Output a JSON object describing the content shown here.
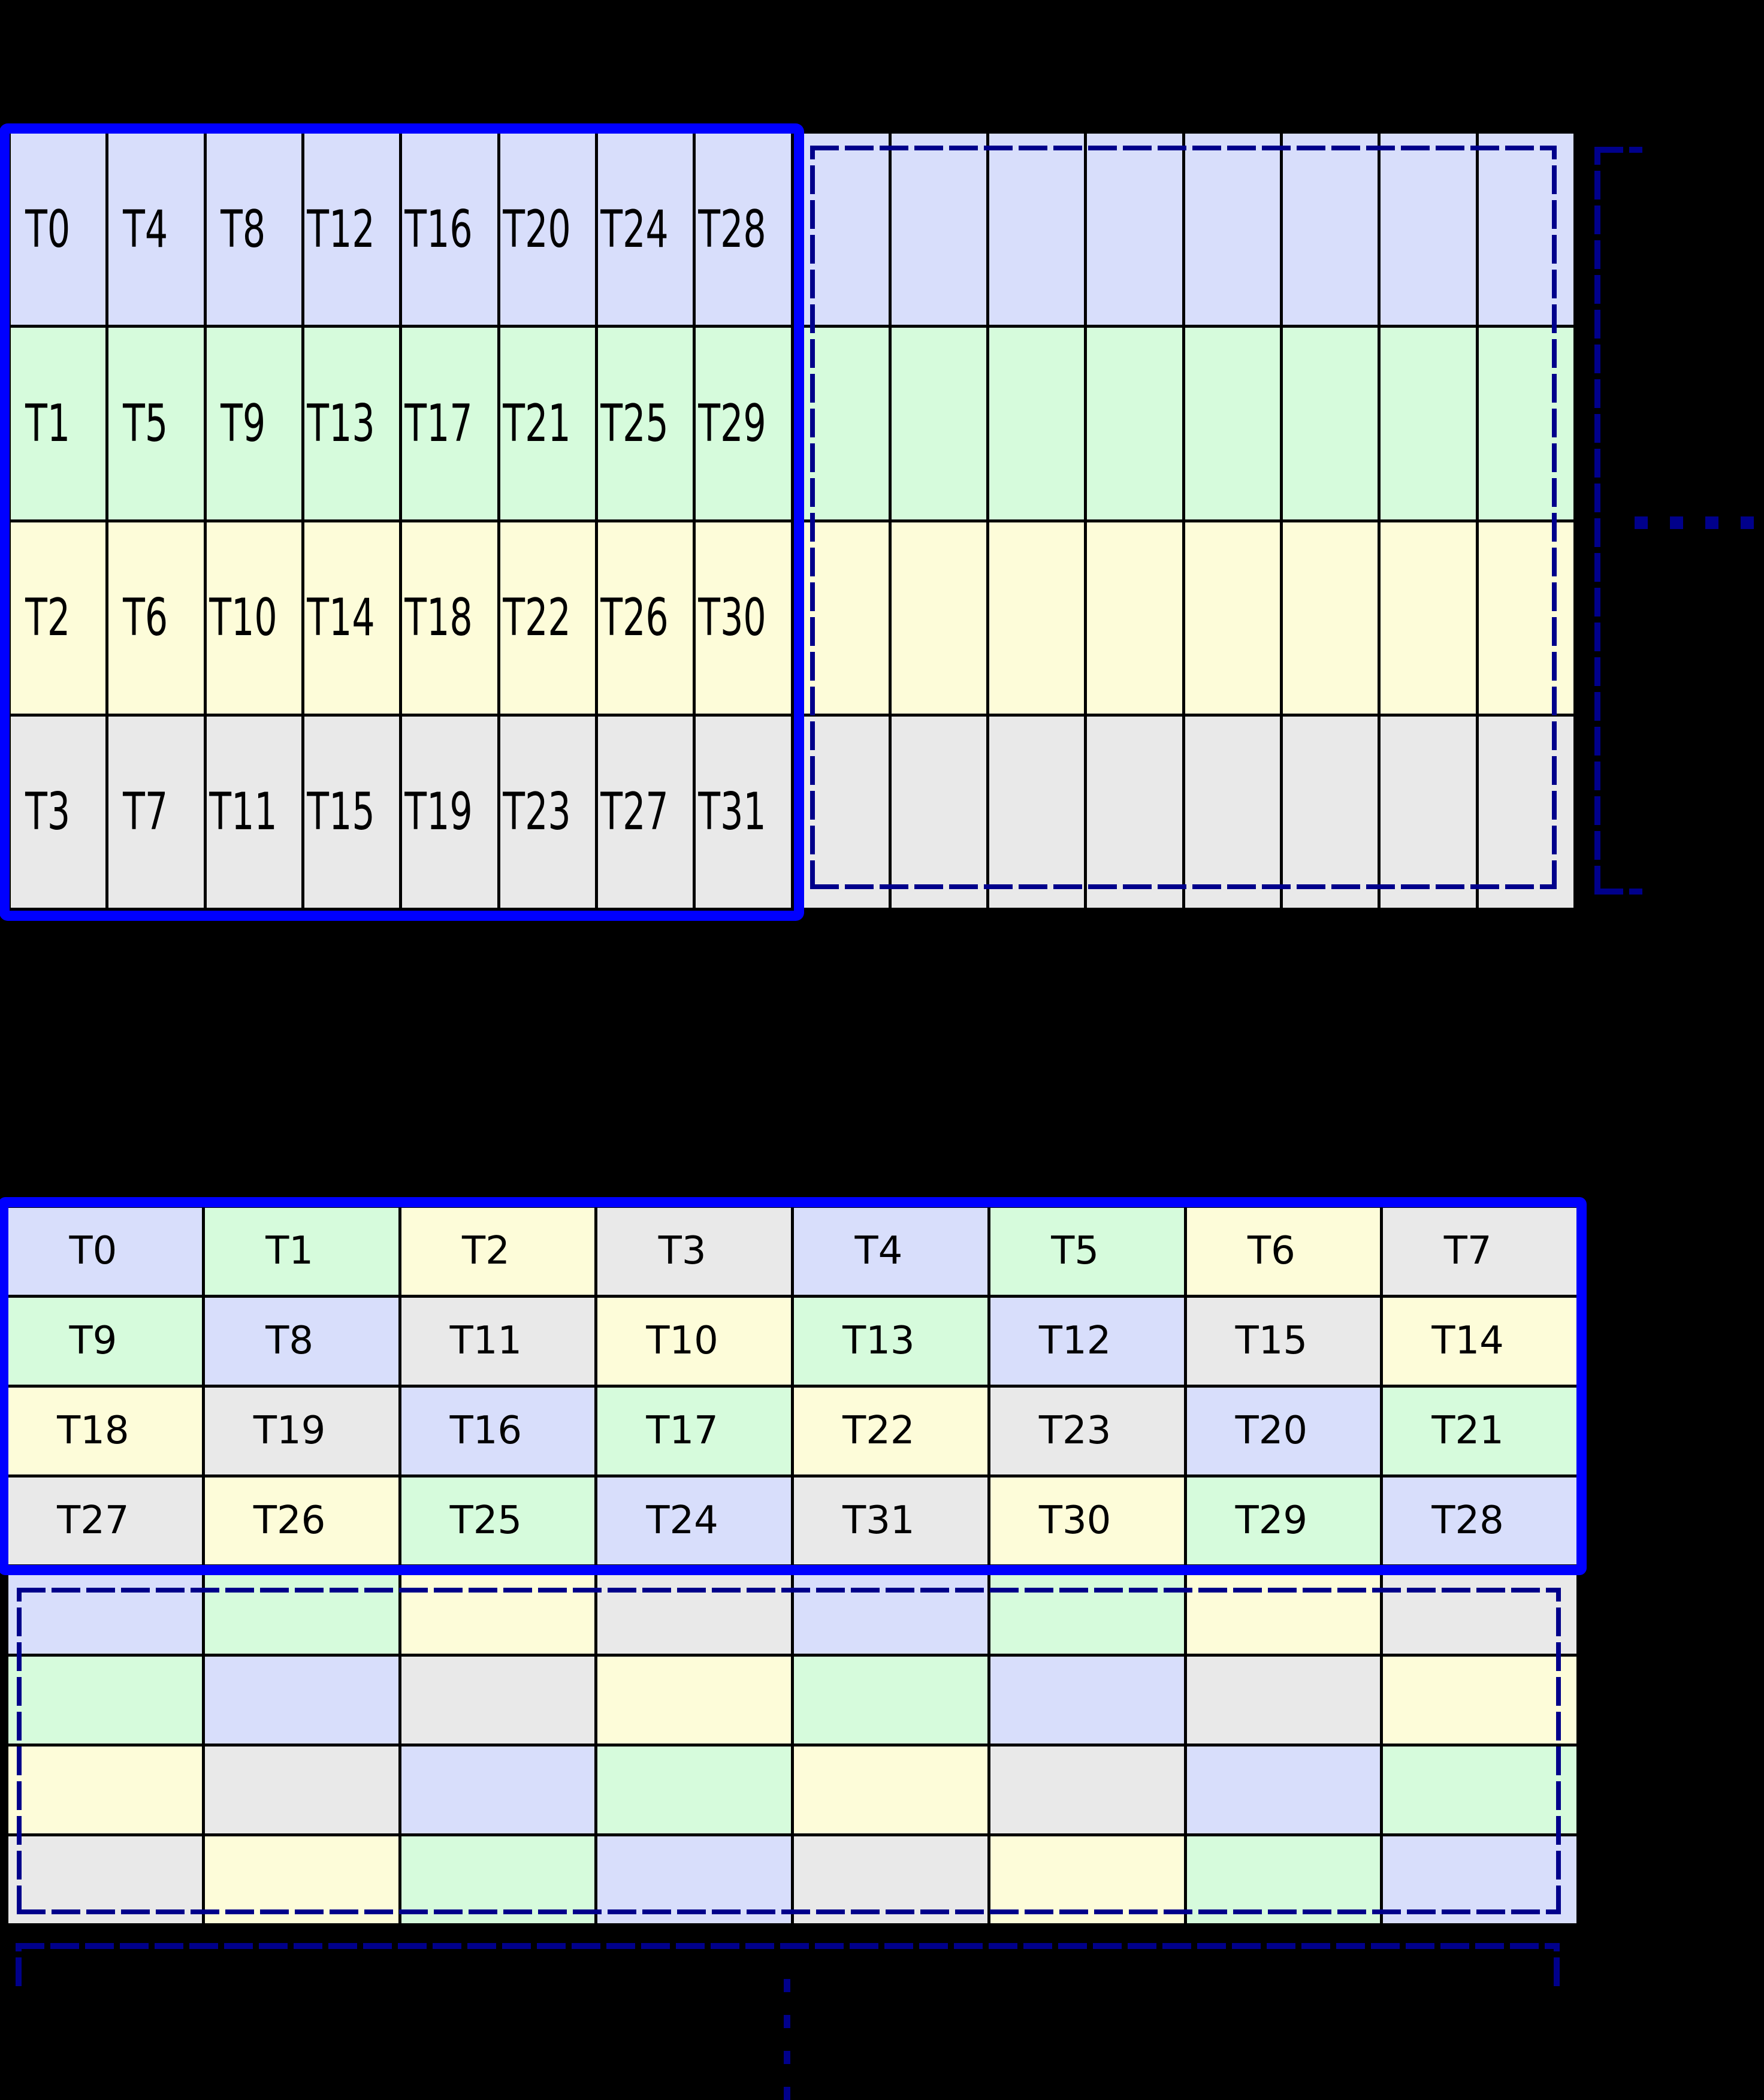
{
  "palette": {
    "thread_class_colors": [
      "#d8defb",
      "#d6fbdc",
      "#fdfcd9",
      "#e9e9e9"
    ],
    "solid_highlight_border": "#0000ff",
    "dashed_highlight_border": "#00008b",
    "grid_line": "#000000",
    "background": "#000000",
    "label_color": "#000000"
  },
  "top_grid": {
    "rows": 4,
    "cols": 16,
    "labeled_cols": 8,
    "row_color_index": [
      0,
      1,
      2,
      3
    ],
    "labels": [
      [
        "T0",
        "T4",
        "T8",
        "T12",
        "T16",
        "T20",
        "T24",
        "T28"
      ],
      [
        "T1",
        "T5",
        "T9",
        "T13",
        "T17",
        "T21",
        "T25",
        "T29"
      ],
      [
        "T2",
        "T6",
        "T10",
        "T14",
        "T18",
        "T22",
        "T26",
        "T30"
      ],
      [
        "T3",
        "T7",
        "T11",
        "T15",
        "T19",
        "T23",
        "T27",
        "T31"
      ]
    ]
  },
  "bottom_grid": {
    "rows": 8,
    "cols": 8,
    "labeled_rows": 4,
    "cell_color_index": [
      [
        0,
        1,
        2,
        3,
        0,
        1,
        2,
        3
      ],
      [
        1,
        0,
        3,
        2,
        1,
        0,
        3,
        2
      ],
      [
        2,
        3,
        0,
        1,
        2,
        3,
        0,
        1
      ],
      [
        3,
        2,
        1,
        0,
        3,
        2,
        1,
        0
      ],
      [
        0,
        1,
        2,
        3,
        0,
        1,
        2,
        3
      ],
      [
        1,
        0,
        3,
        2,
        1,
        0,
        3,
        2
      ],
      [
        2,
        3,
        0,
        1,
        2,
        3,
        0,
        1
      ],
      [
        3,
        2,
        1,
        0,
        3,
        2,
        1,
        0
      ]
    ],
    "labels": [
      [
        "T0",
        "T1",
        "T2",
        "T3",
        "T4",
        "T5",
        "T6",
        "T7"
      ],
      [
        "T9",
        "T8",
        "T11",
        "T10",
        "T13",
        "T12",
        "T15",
        "T14"
      ],
      [
        "T18",
        "T19",
        "T16",
        "T17",
        "T22",
        "T23",
        "T20",
        "T21"
      ],
      [
        "T27",
        "T26",
        "T25",
        "T24",
        "T31",
        "T30",
        "T29",
        "T28"
      ]
    ]
  }
}
